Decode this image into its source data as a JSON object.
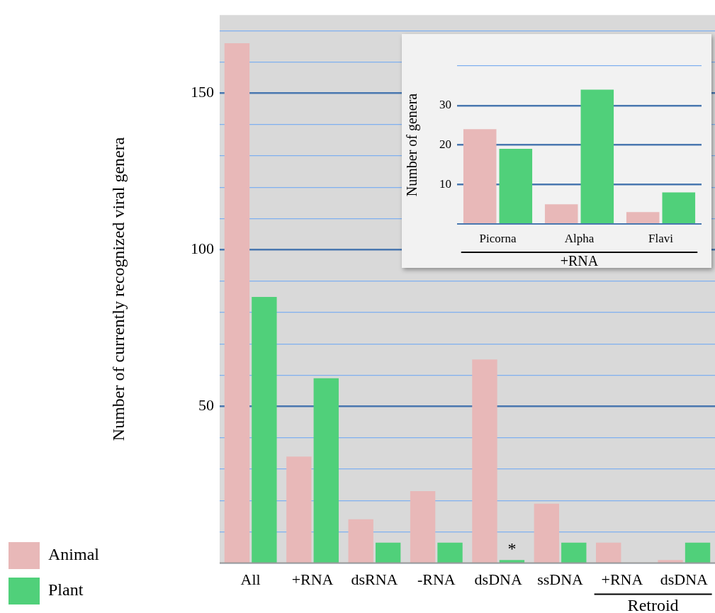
{
  "chart_data": [
    {
      "type": "bar",
      "ylabel": "Number of currently recognized viral genera",
      "xlabel": "Retroid",
      "categories": [
        "All",
        "+RNA",
        "dsRNA",
        "-RNA",
        "dsDNA",
        "ssDNA",
        "+RNA",
        "dsDNA"
      ],
      "series": [
        {
          "name": "Animal",
          "color": "#e8b8b8",
          "values": [
            166,
            34,
            14,
            23,
            65,
            19,
            6.5,
            1
          ]
        },
        {
          "name": "Plant",
          "color": "#50d07a",
          "values": [
            85,
            59,
            6.5,
            6.5,
            1,
            6.5,
            0,
            6.5
          ]
        }
      ],
      "ylim": [
        0,
        175
      ],
      "yticks": [
        {
          "value": 0,
          "label": null
        },
        {
          "value": 10,
          "label": null
        },
        {
          "value": 20,
          "label": null
        },
        {
          "value": 30,
          "label": null
        },
        {
          "value": 40,
          "label": null
        },
        50,
        {
          "value": 60,
          "label": null
        },
        {
          "value": 70,
          "label": null
        },
        {
          "value": 80,
          "label": null
        },
        {
          "value": 90,
          "label": null
        },
        100,
        {
          "value": 110,
          "label": null
        },
        {
          "value": 120,
          "label": null
        },
        {
          "value": 130,
          "label": null
        },
        {
          "value": 140,
          "label": null
        },
        150,
        {
          "value": 160,
          "label": null
        },
        {
          "value": 170,
          "label": null
        }
      ],
      "grid": "y",
      "legend": "bottom left",
      "annotations": [
        {
          "text": "*",
          "x": "dsDNA",
          "y": 1
        }
      ]
    },
    {
      "type": "bar",
      "ylabel": "Number of genera",
      "xlabel": "+RNA",
      "categories": [
        "Picorna",
        "Alpha",
        "Flavi"
      ],
      "series": [
        {
          "color": "#e8b8b8",
          "values": [
            24,
            5,
            3
          ]
        },
        {
          "color": "#50d07a",
          "values": [
            19,
            34,
            8
          ]
        }
      ],
      "ylim": [
        0,
        40
      ],
      "yticks": [
        10,
        20,
        30,
        {
          "value": 40,
          "label": null
        }
      ],
      "grid": "y",
      "legend": false
    }
  ]
}
